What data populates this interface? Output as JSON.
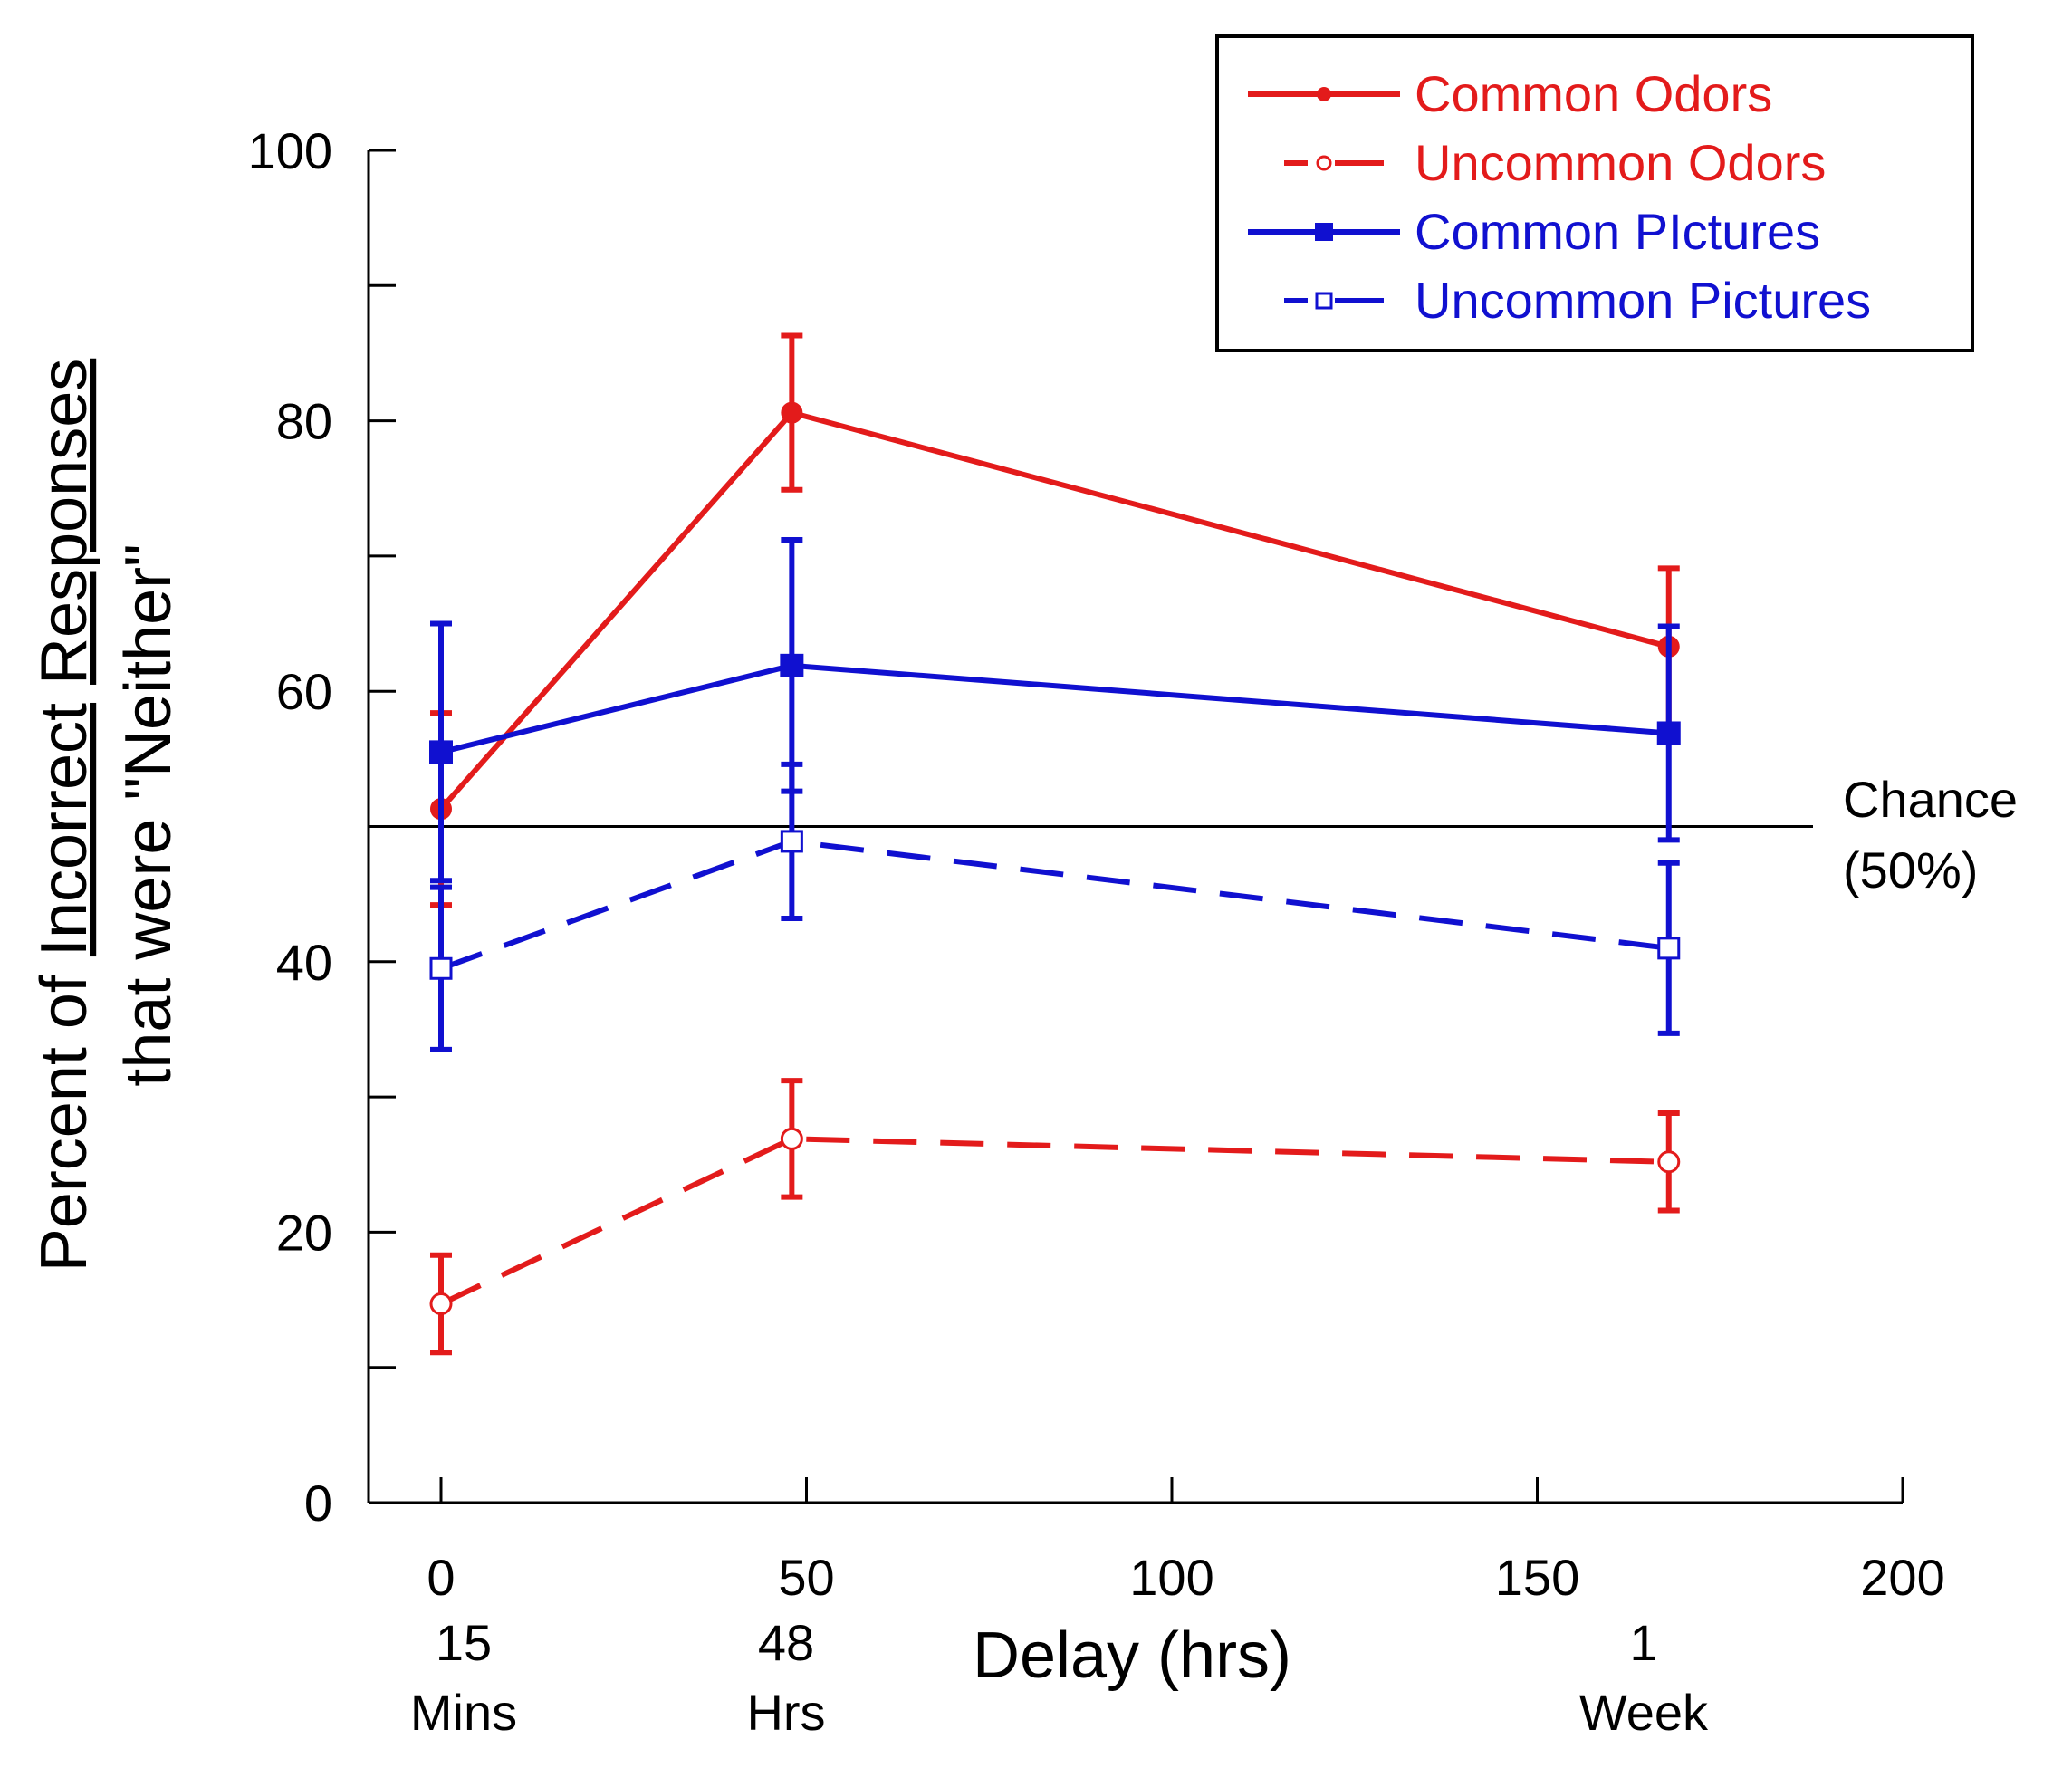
{
  "colors": {
    "red": "#e31b1b",
    "blue": "#1010d0",
    "black": "#000000"
  },
  "chart_data": {
    "type": "line",
    "title": "",
    "xlabel": "Delay (hrs)",
    "ylabel_line1": "Percent of Incorrect Responses",
    "ylabel_line1_parts": {
      "pre": "Percent of ",
      "word1": "Incorrect",
      "mid": " ",
      "word2": "Responses"
    },
    "ylabel_line2": "that were \"Neither\"",
    "xlim": [
      -10,
      200
    ],
    "ylim": [
      0,
      100
    ],
    "x_major_ticks": [
      0,
      50,
      100,
      150,
      200
    ],
    "y_major_ticks": [
      0,
      20,
      40,
      60,
      80,
      100
    ],
    "y_minor_ticks": [
      10,
      30,
      50,
      70,
      90
    ],
    "delay_labels": [
      {
        "x": 0,
        "line1": "15",
        "line2": "Mins"
      },
      {
        "x": 48,
        "line1": "48",
        "line2": "Hrs"
      },
      {
        "x": 168,
        "line1": "1",
        "line2": "Week"
      }
    ],
    "reference_line": {
      "y": 50,
      "label_line1": "Chance",
      "label_line2": "(50%)"
    },
    "legend_position": "top-right",
    "series": [
      {
        "name": "Common Odors",
        "color_key": "red",
        "dashed": false,
        "marker": "circle-filled",
        "x": [
          0,
          48,
          168
        ],
        "y": [
          51.3,
          80.6,
          63.3
        ],
        "err": [
          7.1,
          5.7,
          5.8
        ]
      },
      {
        "name": "Uncommon Odors",
        "color_key": "red",
        "dashed": true,
        "marker": "circle-open",
        "x": [
          0,
          48,
          168
        ],
        "y": [
          14.7,
          26.9,
          25.2
        ],
        "err": [
          3.6,
          4.3,
          3.6
        ]
      },
      {
        "name": "Common PIctures",
        "color_key": "blue",
        "dashed": false,
        "marker": "square-filled",
        "x": [
          0,
          48,
          168
        ],
        "y": [
          55.5,
          61.9,
          56.9
        ],
        "err": [
          9.5,
          9.3,
          7.9
        ]
      },
      {
        "name": "Uncommon Pictures",
        "color_key": "blue",
        "dashed": true,
        "marker": "square-open",
        "x": [
          0,
          48,
          168
        ],
        "y": [
          39.5,
          48.9,
          41.0
        ],
        "err": [
          6.0,
          5.7,
          6.3
        ]
      }
    ]
  }
}
